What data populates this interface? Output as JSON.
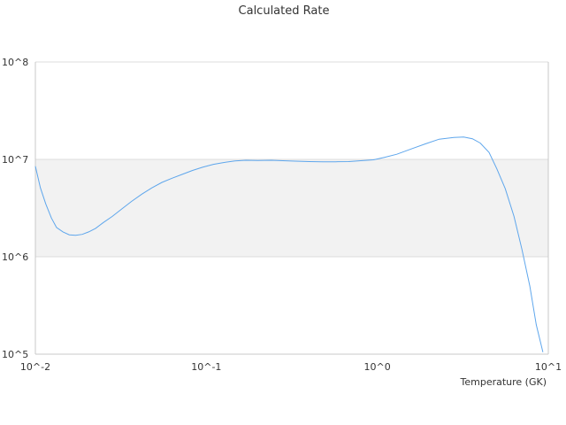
{
  "chart_data": {
    "type": "line",
    "title": "Calculated Rate",
    "xlabel": "Temperature (GK)",
    "ylabel": "",
    "x_scale": "log",
    "y_scale": "log",
    "xlim": [
      0.01,
      10
    ],
    "ylim": [
      100000,
      100000000
    ],
    "x_tick_labels": [
      "10^-2",
      "10^-1",
      "10^0",
      "10^1"
    ],
    "y_tick_labels": [
      "10^5",
      "10^6",
      "10^7",
      "10^8"
    ],
    "grid": true,
    "legend": "none",
    "colors": {
      "line": "#5ea6ec",
      "band": "#f2f2f2",
      "grid": "#dcdcdc",
      "axis": "#c8c8c8"
    },
    "series": [
      {
        "x": [
          0.01,
          0.0107,
          0.0115,
          0.0124,
          0.0133,
          0.0145,
          0.0158,
          0.0172,
          0.0188,
          0.0205,
          0.0225,
          0.025,
          0.0282,
          0.032,
          0.0365,
          0.042,
          0.048,
          0.055,
          0.063,
          0.072,
          0.083,
          0.095,
          0.11,
          0.127,
          0.147,
          0.17,
          0.2,
          0.24,
          0.28,
          0.33,
          0.4,
          0.48,
          0.57,
          0.68,
          0.8,
          0.95,
          1.1,
          1.3,
          1.6,
          1.9,
          2.3,
          2.8,
          3.2,
          3.6,
          4.0,
          4.5,
          5.0,
          5.6,
          6.3,
          7.0,
          7.8,
          8.5,
          9.3
        ],
        "y": [
          8500000,
          5100000,
          3500000,
          2500000,
          2000000,
          1800000,
          1680000,
          1660000,
          1700000,
          1800000,
          1960000,
          2250000,
          2600000,
          3100000,
          3700000,
          4400000,
          5100000,
          5800000,
          6400000,
          7000000,
          7700000,
          8300000,
          8900000,
          9300000,
          9650000,
          9800000,
          9750000,
          9800000,
          9700000,
          9600000,
          9500000,
          9450000,
          9450000,
          9500000,
          9700000,
          9900000,
          10500000,
          11300000,
          12900000,
          14400000,
          16100000,
          16800000,
          17000000,
          16300000,
          14700000,
          11800000,
          8000000,
          5000000,
          2600000,
          1200000,
          500000,
          200000,
          105000
        ]
      }
    ]
  }
}
